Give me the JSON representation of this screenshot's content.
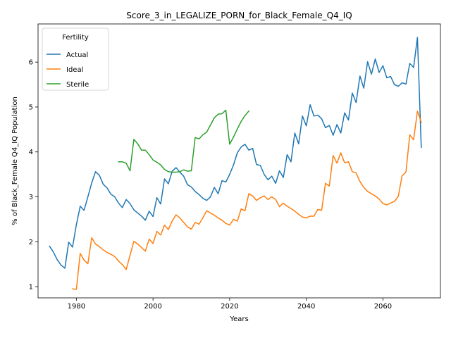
{
  "chart_data": {
    "type": "line",
    "title": "Score_3_in_LEGALIZE_PORN_for_Black_Female_Q4_IQ",
    "xlabel": "Years",
    "ylabel": "% of Black_Female Q4_IQ Population",
    "xlim": [
      1970,
      2075
    ],
    "ylim": [
      0.75,
      6.85
    ],
    "xticks": [
      1980,
      2000,
      2020,
      2040,
      2060
    ],
    "yticks": [
      1,
      2,
      3,
      4,
      5,
      6
    ],
    "grid": false,
    "legend": {
      "title": "Fertility",
      "placement": "top-left"
    },
    "series": [
      {
        "name": "Actual",
        "color": "#1f77b4",
        "x": [
          1973,
          1974,
          1975,
          1976,
          1977,
          1978,
          1979,
          1980,
          1981,
          1982,
          1983,
          1984,
          1985,
          1986,
          1987,
          1988,
          1989,
          1990,
          1991,
          1992,
          1993,
          1994,
          1995,
          1996,
          1997,
          1998,
          1999,
          2000,
          2001,
          2002,
          2003,
          2004,
          2005,
          2006,
          2007,
          2008,
          2009,
          2010,
          2011,
          2012,
          2013,
          2014,
          2015,
          2016,
          2017,
          2018,
          2019,
          2020,
          2021,
          2022,
          2023,
          2024,
          2025,
          2026,
          2027,
          2028,
          2029,
          2030,
          2031,
          2032,
          2033,
          2034,
          2035,
          2036,
          2037,
          2038,
          2039,
          2040,
          2041,
          2042,
          2043,
          2044,
          2045,
          2046,
          2047,
          2048,
          2049,
          2050,
          2051,
          2052,
          2053,
          2054,
          2055,
          2056,
          2057,
          2058,
          2059,
          2060,
          2061,
          2062,
          2063,
          2064,
          2065,
          2066,
          2067,
          2068,
          2069,
          2070
        ],
        "values": [
          1.9,
          1.77,
          1.6,
          1.48,
          1.41,
          1.99,
          1.88,
          2.38,
          2.79,
          2.7,
          3.0,
          3.31,
          3.56,
          3.48,
          3.28,
          3.2,
          3.06,
          3.0,
          2.86,
          2.76,
          2.94,
          2.85,
          2.71,
          2.64,
          2.57,
          2.48,
          2.68,
          2.56,
          2.98,
          2.84,
          3.4,
          3.29,
          3.57,
          3.65,
          3.55,
          3.46,
          3.27,
          3.22,
          3.12,
          3.05,
          2.97,
          2.92,
          3.0,
          3.21,
          3.07,
          3.36,
          3.33,
          3.5,
          3.71,
          3.98,
          4.11,
          4.17,
          4.04,
          4.08,
          3.72,
          3.7,
          3.5,
          3.38,
          3.46,
          3.3,
          3.58,
          3.43,
          3.94,
          3.78,
          4.42,
          4.18,
          4.8,
          4.58,
          5.05,
          4.8,
          4.82,
          4.74,
          4.54,
          4.59,
          4.37,
          4.61,
          4.42,
          4.87,
          4.71,
          5.31,
          5.1,
          5.69,
          5.42,
          6.01,
          5.73,
          6.07,
          5.77,
          5.92,
          5.65,
          5.68,
          5.5,
          5.46,
          5.54,
          5.51,
          5.97,
          5.88,
          6.55,
          4.1
        ]
      },
      {
        "name": "Ideal",
        "color": "#ff7f0e",
        "x": [
          1979,
          1980,
          1981,
          1982,
          1983,
          1984,
          1985,
          1986,
          1987,
          1988,
          1989,
          1990,
          1991,
          1992,
          1993,
          1994,
          1995,
          1996,
          1997,
          1998,
          1999,
          2000,
          2001,
          2002,
          2003,
          2004,
          2005,
          2006,
          2007,
          2008,
          2009,
          2010,
          2011,
          2012,
          2013,
          2014,
          2015,
          2016,
          2017,
          2018,
          2019,
          2020,
          2021,
          2022,
          2023,
          2024,
          2025,
          2026,
          2027,
          2028,
          2029,
          2030,
          2031,
          2032,
          2033,
          2034,
          2035,
          2036,
          2037,
          2038,
          2039,
          2040,
          2041,
          2042,
          2043,
          2044,
          2045,
          2046,
          2047,
          2048,
          2049,
          2050,
          2051,
          2052,
          2053,
          2054,
          2055,
          2056,
          2057,
          2058,
          2059,
          2060,
          2061,
          2062,
          2063,
          2064,
          2065,
          2066,
          2067,
          2068,
          2069,
          2070
        ],
        "values": [
          0.95,
          0.94,
          1.74,
          1.59,
          1.51,
          2.09,
          1.95,
          1.89,
          1.82,
          1.76,
          1.72,
          1.67,
          1.57,
          1.49,
          1.38,
          1.7,
          2.01,
          1.95,
          1.87,
          1.79,
          2.06,
          1.96,
          2.23,
          2.15,
          2.37,
          2.27,
          2.46,
          2.6,
          2.53,
          2.43,
          2.33,
          2.28,
          2.43,
          2.39,
          2.53,
          2.69,
          2.64,
          2.59,
          2.53,
          2.48,
          2.41,
          2.37,
          2.5,
          2.46,
          2.73,
          2.69,
          3.07,
          3.02,
          2.92,
          2.98,
          3.02,
          2.94,
          3.0,
          2.94,
          2.78,
          2.86,
          2.79,
          2.74,
          2.68,
          2.61,
          2.55,
          2.53,
          2.57,
          2.57,
          2.72,
          2.7,
          3.3,
          3.24,
          3.92,
          3.75,
          3.98,
          3.76,
          3.78,
          3.56,
          3.53,
          3.34,
          3.21,
          3.12,
          3.07,
          3.02,
          2.95,
          2.85,
          2.82,
          2.86,
          2.9,
          3.01,
          3.47,
          3.55,
          4.38,
          4.27,
          4.91,
          4.66
        ]
      },
      {
        "name": "Sterile",
        "color": "#2ca02c",
        "x": [
          1991,
          1992,
          1993,
          1994,
          1995,
          1996,
          1997,
          1998,
          1999,
          2000,
          2001,
          2002,
          2003,
          2004,
          2005,
          2006,
          2007,
          2008,
          2009,
          2010,
          2011,
          2012,
          2013,
          2014,
          2015,
          2016,
          2017,
          2018,
          2019,
          2020,
          2021,
          2022,
          2023,
          2024,
          2025
        ],
        "values": [
          3.78,
          3.78,
          3.75,
          3.58,
          4.28,
          4.18,
          4.04,
          4.04,
          3.94,
          3.82,
          3.77,
          3.71,
          3.61,
          3.56,
          3.55,
          3.55,
          3.56,
          3.6,
          3.57,
          3.58,
          4.32,
          4.29,
          4.38,
          4.44,
          4.6,
          4.76,
          4.84,
          4.85,
          4.93,
          4.17,
          4.33,
          4.51,
          4.68,
          4.81,
          4.91
        ]
      }
    ]
  }
}
